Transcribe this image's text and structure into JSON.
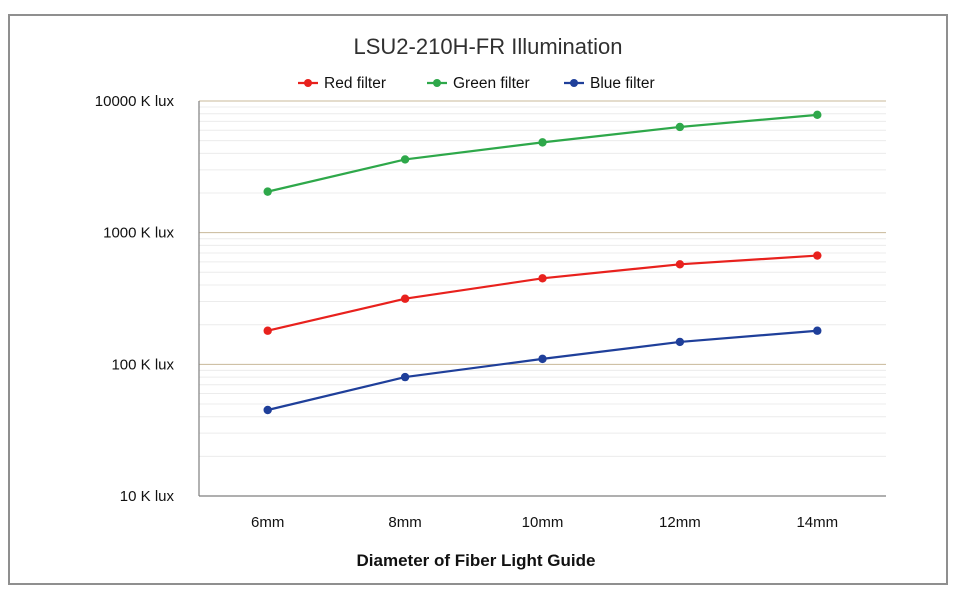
{
  "chart_data": {
    "type": "line",
    "title": "LSU2-210H-FR Illumination",
    "xlabel": "Diameter of Fiber Light Guide",
    "ylabel": "",
    "categories": [
      "6mm",
      "8mm",
      "10mm",
      "12mm",
      "14mm"
    ],
    "yscale": "log",
    "ylim": [
      10,
      10000
    ],
    "yticks": [
      {
        "value": 10,
        "label": "10 K lux"
      },
      {
        "value": 100,
        "label": "100 K lux"
      },
      {
        "value": 1000,
        "label": "1000 K lux"
      },
      {
        "value": 10000,
        "label": "10000 K lux"
      }
    ],
    "grid": true,
    "legend_position": "top",
    "series": [
      {
        "name": "Red filter",
        "color": "#e8211d",
        "values": [
          180,
          315,
          450,
          575,
          670
        ]
      },
      {
        "name": "Green filter",
        "color": "#2ea84a",
        "values": [
          2050,
          3600,
          4850,
          6350,
          7850
        ]
      },
      {
        "name": "Blue filter",
        "color": "#1f3f9a",
        "values": [
          45,
          80,
          110,
          148,
          180
        ]
      }
    ]
  }
}
